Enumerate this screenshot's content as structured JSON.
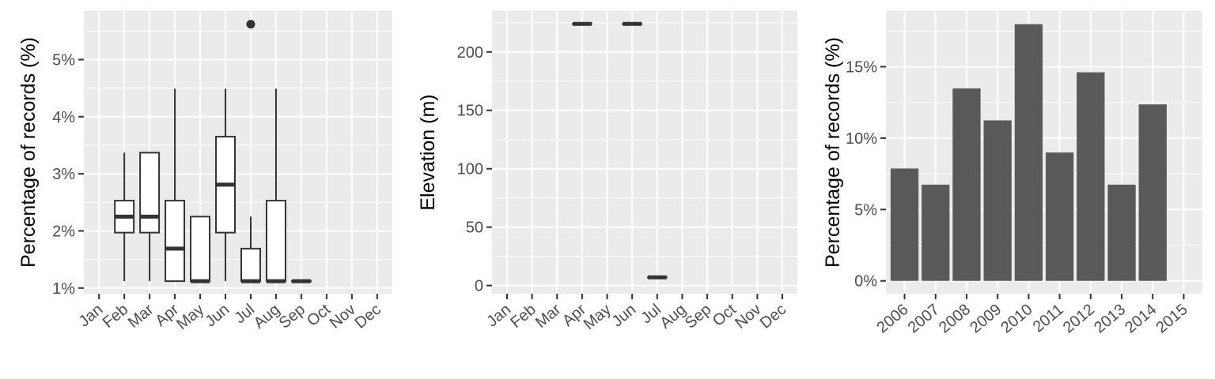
{
  "chart_data": [
    {
      "type": "box",
      "ylabel": "Percentage of records (%)",
      "categories": [
        "Jan",
        "Feb",
        "Mar",
        "Apr",
        "May",
        "Jun",
        "Jul",
        "Aug",
        "Sep",
        "Oct",
        "Nov",
        "Dec"
      ],
      "ylim": [
        0.9,
        5.85
      ],
      "yticks": [
        1,
        2,
        3,
        4,
        5
      ],
      "ytick_labels": [
        "1%",
        "2%",
        "3%",
        "4%",
        "5%"
      ],
      "grid": true,
      "boxes": [
        {
          "category": "Feb",
          "min": 1.12,
          "q1": 1.97,
          "median": 2.25,
          "q3": 2.53,
          "max": 3.37
        },
        {
          "category": "Mar",
          "min": 1.12,
          "q1": 1.97,
          "median": 2.25,
          "q3": 3.37,
          "max": 3.37
        },
        {
          "category": "Apr",
          "min": 1.12,
          "q1": 1.12,
          "median": 1.69,
          "q3": 2.53,
          "max": 4.49
        },
        {
          "category": "May",
          "min": 1.12,
          "q1": 1.12,
          "median": 1.12,
          "q3": 2.25,
          "max": 2.25
        },
        {
          "category": "Jun",
          "min": 1.12,
          "q1": 1.97,
          "median": 2.81,
          "q3": 3.65,
          "max": 4.49
        },
        {
          "category": "Jul",
          "min": 1.12,
          "q1": 1.12,
          "median": 1.12,
          "q3": 1.69,
          "max": 2.25,
          "outliers": [
            5.62
          ]
        },
        {
          "category": "Aug",
          "min": 1.12,
          "q1": 1.12,
          "median": 1.12,
          "q3": 2.53,
          "max": 4.49
        },
        {
          "category": "Sep",
          "min": 1.12,
          "q1": 1.12,
          "median": 1.12,
          "q3": 1.12,
          "max": 1.12
        }
      ]
    },
    {
      "type": "box",
      "ylabel": "Elevation (m)",
      "categories": [
        "Jan",
        "Feb",
        "Mar",
        "Apr",
        "May",
        "Jun",
        "Jul",
        "Aug",
        "Sep",
        "Oct",
        "Nov",
        "Dec"
      ],
      "ylim": [
        -7,
        235
      ],
      "yticks": [
        0,
        50,
        100,
        150,
        200
      ],
      "ytick_labels": [
        "0",
        "50",
        "100",
        "150",
        "200"
      ],
      "grid": true,
      "boxes": [
        {
          "category": "Apr",
          "min": 224,
          "q1": 224,
          "median": 224,
          "q3": 224,
          "max": 224
        },
        {
          "category": "Jun",
          "min": 224,
          "q1": 224,
          "median": 224,
          "q3": 224,
          "max": 224
        },
        {
          "category": "Jul",
          "min": 7,
          "q1": 7,
          "median": 7,
          "q3": 7,
          "max": 7
        }
      ]
    },
    {
      "type": "bar",
      "ylabel": "Percentage of records (%)",
      "categories": [
        "2006",
        "2007",
        "2008",
        "2009",
        "2010",
        "2011",
        "2012",
        "2013",
        "2014",
        "2015"
      ],
      "values": [
        7.87,
        6.74,
        13.48,
        11.24,
        17.98,
        8.99,
        14.61,
        6.74,
        12.36,
        0
      ],
      "ylim": [
        -0.9,
        18.9
      ],
      "yticks": [
        0,
        5,
        10,
        15
      ],
      "ytick_labels": [
        "0%",
        "5%",
        "10%",
        "15%"
      ],
      "grid": true
    }
  ]
}
